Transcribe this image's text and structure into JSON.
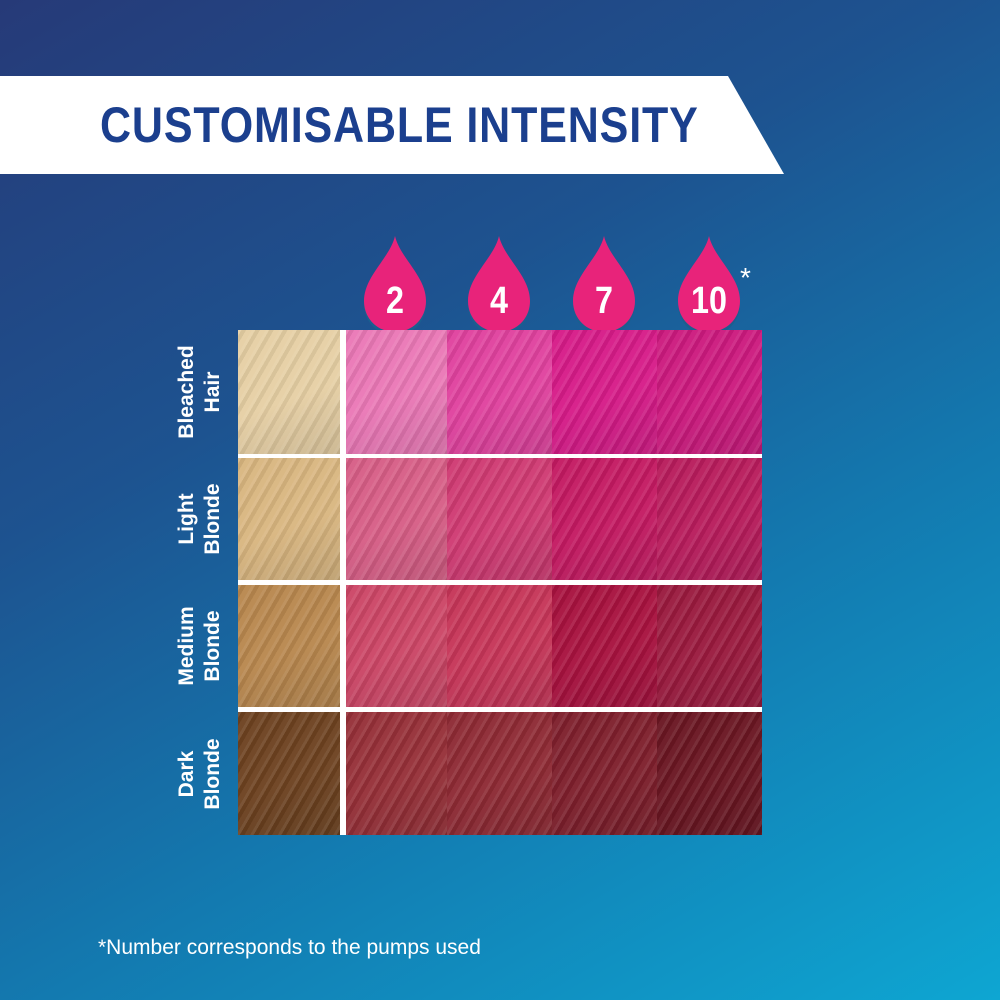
{
  "title": "CUSTOMISABLE INTENSITY",
  "pumps": [
    {
      "label": "2"
    },
    {
      "label": "4"
    },
    {
      "label": "7"
    },
    {
      "label": "10"
    }
  ],
  "pump_asterisk": "*",
  "drop_color": "#e8237a",
  "rows": [
    {
      "line1": "Bleached",
      "line2": "Hair",
      "base": "#e6cfa4",
      "swatches": [
        "#ea78b6",
        "#e0429e",
        "#d61b88",
        "#cc1a7e"
      ]
    },
    {
      "line1": "Light",
      "line2": "Blonde",
      "base": "#d9b680",
      "swatches": [
        "#d75e86",
        "#cf3a72",
        "#c41a62",
        "#b81c5c"
      ]
    },
    {
      "line1": "Medium",
      "line2": "Blonde",
      "base": "#b8874e",
      "swatches": [
        "#cc4666",
        "#c63558",
        "#a8123f",
        "#9a1a3e"
      ]
    },
    {
      "line1": "Dark",
      "line2": "Blonde",
      "base": "#6d4220",
      "swatches": [
        "#963038",
        "#8e2a34",
        "#7e1f2c",
        "#6a1622"
      ]
    }
  ],
  "footnote": "*Number corresponds to the pumps used"
}
